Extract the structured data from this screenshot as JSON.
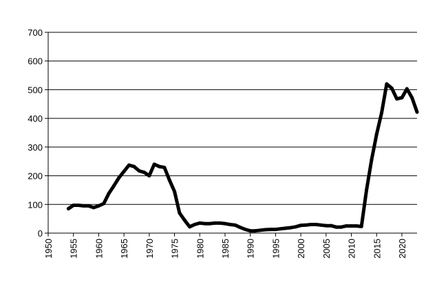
{
  "chart_data": {
    "type": "line",
    "title": "",
    "xlabel": "",
    "ylabel": "",
    "xlim": [
      1950,
      2023
    ],
    "ylim": [
      0,
      700
    ],
    "x_ticks": [
      1950,
      1955,
      1960,
      1965,
      1970,
      1975,
      1980,
      1985,
      1990,
      1995,
      2000,
      2005,
      2010,
      2015,
      2020
    ],
    "y_ticks": [
      0,
      100,
      200,
      300,
      400,
      500,
      600,
      700
    ],
    "grid": "horizontal",
    "legend": "none",
    "line_color": "#000000",
    "series": [
      {
        "x": [
          1954,
          1955,
          1956,
          1957,
          1958,
          1959,
          1960,
          1961,
          1962,
          1963,
          1964,
          1965,
          1966,
          1967,
          1968,
          1969,
          1970,
          1971,
          1972,
          1973,
          1974,
          1975,
          1976,
          1977,
          1978,
          1979,
          1980,
          1981,
          1982,
          1983,
          1984,
          1985,
          1986,
          1987,
          1988,
          1989,
          1990,
          1991,
          1992,
          1993,
          1994,
          1995,
          1996,
          1997,
          1998,
          1999,
          2000,
          2001,
          2002,
          2003,
          2004,
          2005,
          2006,
          2007,
          2008,
          2009,
          2010,
          2011,
          2012,
          2013,
          2014,
          2015,
          2016,
          2017,
          2018,
          2019,
          2020,
          2021,
          2022,
          2023
        ],
        "values": [
          85,
          97,
          97,
          95,
          95,
          89,
          95,
          103,
          138,
          165,
          193,
          215,
          237,
          232,
          217,
          212,
          200,
          240,
          232,
          229,
          185,
          145,
          70,
          45,
          22,
          30,
          35,
          33,
          33,
          35,
          35,
          33,
          30,
          28,
          20,
          13,
          8,
          8,
          10,
          12,
          13,
          13,
          15,
          17,
          19,
          22,
          27,
          28,
          30,
          30,
          28,
          26,
          26,
          21,
          21,
          25,
          25,
          25,
          23,
          150,
          255,
          345,
          420,
          520,
          505,
          468,
          472,
          503,
          472,
          422
        ]
      }
    ]
  }
}
